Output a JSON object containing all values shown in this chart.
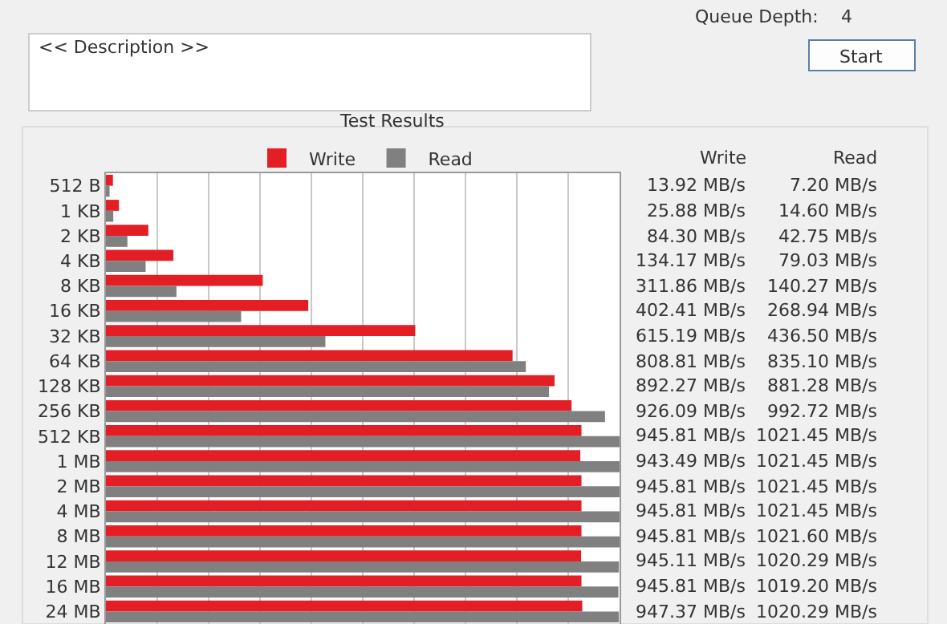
{
  "chart_data": {
    "type": "bar",
    "orientation": "horizontal",
    "title": "Test Results",
    "categories": [
      "512 B",
      "1 KB",
      "2 KB",
      "4 KB",
      "8 KB",
      "16 KB",
      "32 KB",
      "64 KB",
      "128 KB",
      "256 KB",
      "512 KB",
      "1 MB",
      "2 MB",
      "4 MB",
      "8 MB",
      "12 MB",
      "16 MB",
      "24 MB"
    ],
    "series": [
      {
        "name": "Write",
        "color": "#e31e24",
        "values": [
          13.92,
          25.88,
          84.3,
          134.17,
          311.86,
          402.41,
          615.19,
          808.81,
          892.27,
          926.09,
          945.81,
          943.49,
          945.81,
          945.81,
          945.81,
          945.11,
          945.81,
          947.37
        ],
        "value_labels": [
          "13.92 MB/s",
          "25.88 MB/s",
          "84.30 MB/s",
          "134.17 MB/s",
          "311.86 MB/s",
          "402.41 MB/s",
          "615.19 MB/s",
          "808.81 MB/s",
          "892.27 MB/s",
          "926.09 MB/s",
          "945.81 MB/s",
          "943.49 MB/s",
          "945.81 MB/s",
          "945.81 MB/s",
          "945.81 MB/s",
          "945.11 MB/s",
          "945.81 MB/s",
          "947.37 MB/s"
        ]
      },
      {
        "name": "Read",
        "color": "#808080",
        "values": [
          7.2,
          14.6,
          42.75,
          79.03,
          140.27,
          268.94,
          436.5,
          835.1,
          881.28,
          992.72,
          1021.45,
          1021.45,
          1021.45,
          1021.45,
          1021.6,
          1020.29,
          1019.2,
          1020.29
        ],
        "value_labels": [
          "7.20 MB/s",
          "14.60 MB/s",
          "42.75 MB/s",
          "79.03 MB/s",
          "140.27 MB/s",
          "268.94 MB/s",
          "436.50 MB/s",
          "835.10 MB/s",
          "881.28 MB/s",
          "992.72 MB/s",
          "1021.45 MB/s",
          "1021.45 MB/s",
          "1021.45 MB/s",
          "1021.45 MB/s",
          "1021.60 MB/s",
          "1020.29 MB/s",
          "1019.20 MB/s",
          "1020.29 MB/s"
        ]
      }
    ],
    "grid": "x",
    "legend": "top",
    "annotations": [
      "<< Description >>",
      "Start",
      "Queue Depth:",
      "4"
    ]
  }
}
